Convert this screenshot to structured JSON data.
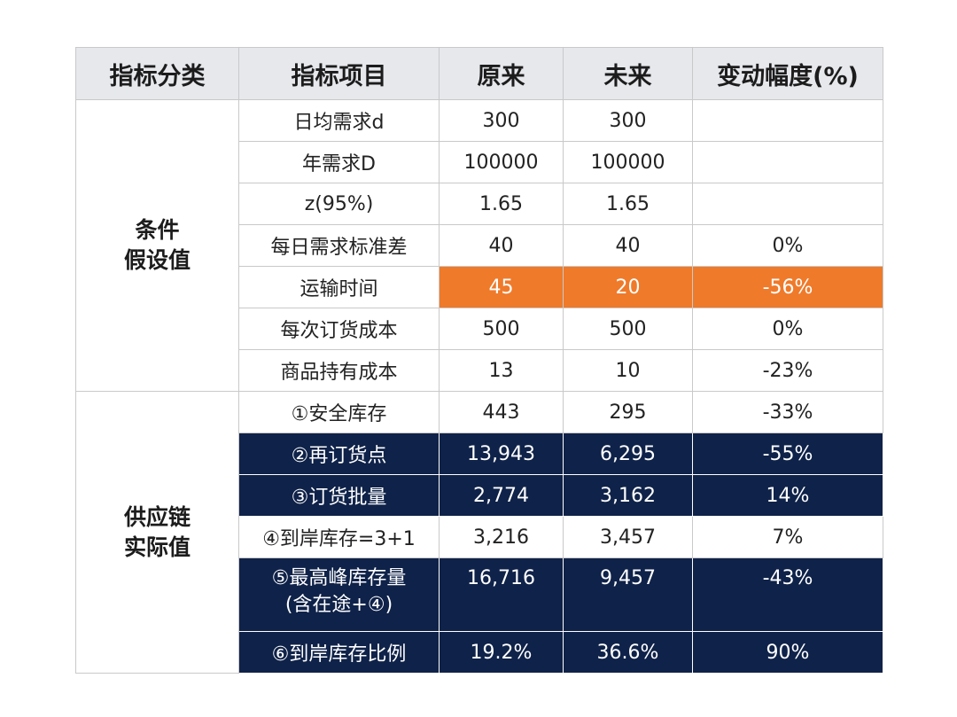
{
  "headers": [
    "指标分类",
    "指标项目",
    "原来",
    "未来",
    "变动幅度(%)"
  ],
  "groups": [
    {
      "category_lines": [
        "条件",
        "假设值"
      ],
      "rows": [
        {
          "item": "日均需求d",
          "before": "300",
          "after": "300",
          "change": ""
        },
        {
          "item": "年需求D",
          "before": "100000",
          "after": "100000",
          "change": ""
        },
        {
          "item": "z(95%)",
          "before": "1.65",
          "after": "1.65",
          "change": ""
        },
        {
          "item": "每日需求标准差",
          "before": "40",
          "after": "40",
          "change": "0%"
        },
        {
          "item": "运输时间",
          "before": "45",
          "after": "20",
          "change": "-56%"
        },
        {
          "item": "每次订货成本",
          "before": "500",
          "after": "500",
          "change": "0%"
        },
        {
          "item": "商品持有成本",
          "before": "13",
          "after": "10",
          "change": "-23%"
        }
      ]
    },
    {
      "category_lines": [
        "供应链",
        "实际值"
      ],
      "rows": [
        {
          "item": "①安全库存",
          "before": "443",
          "after": "295",
          "change": "-33%"
        },
        {
          "item": "②再订货点",
          "before": "13,943",
          "after": "6,295",
          "change": "-55%"
        },
        {
          "item": "③订货批量",
          "before": "2,774",
          "after": "3,162",
          "change": "14%"
        },
        {
          "item": "④到岸库存=3+1",
          "before": "3,216",
          "after": "3,457",
          "change": "7%"
        },
        {
          "item_lines": [
            "⑤最高峰库存量",
            "(含在途+④)"
          ],
          "before": "16,716",
          "after": "9,457",
          "change": "-43%"
        },
        {
          "item": "⑥到岸库存比例",
          "before": "19.2%",
          "after": "36.6%",
          "change": "90%"
        }
      ]
    }
  ],
  "colors": {
    "highlight": "#ef7a2a",
    "dark": "#0f2249",
    "header_bg": "#e6e8ec"
  }
}
